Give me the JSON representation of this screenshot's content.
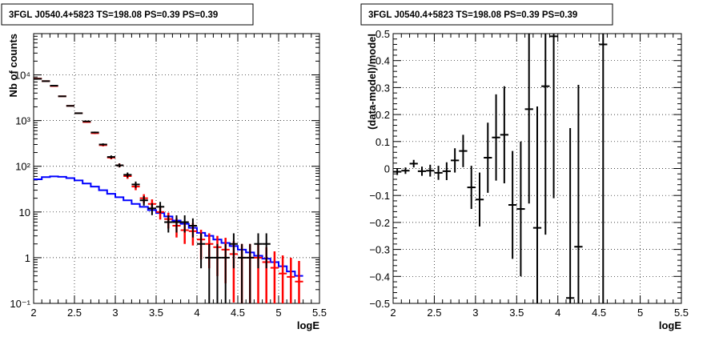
{
  "chart_data": [
    {
      "type": "scatter",
      "title": "3FGL J0540.4+5823 TS=198.08 PS=0.39 PS=0.39",
      "xlabel": "logE",
      "ylabel": "Nb of counts",
      "xlim": [
        2,
        5.5
      ],
      "ylim": [
        0.1,
        80000
      ],
      "yscale": "log",
      "grid": true,
      "xticks": [
        2,
        2.5,
        3,
        3.5,
        4,
        4.5,
        5,
        5.5
      ],
      "xtick_labels": [
        "2",
        "2.5",
        "3",
        "3.5",
        "4",
        "4.5",
        "5",
        "5.5"
      ],
      "yticks": [
        0.1,
        1,
        10,
        100,
        1000,
        10000
      ],
      "ytick_labels": [
        "10⁻¹",
        "1",
        "10",
        "10²",
        "10³",
        "10⁴"
      ],
      "x": [
        2.05,
        2.15,
        2.25,
        2.35,
        2.45,
        2.55,
        2.65,
        2.75,
        2.85,
        2.95,
        3.05,
        3.15,
        3.25,
        3.35,
        3.45,
        3.55,
        3.65,
        3.75,
        3.85,
        3.95,
        4.05,
        4.15,
        4.25,
        4.35,
        4.45,
        4.55,
        4.65,
        4.75,
        4.85,
        4.95,
        5.05,
        5.15,
        5.25
      ],
      "x_halfwidth": 0.05,
      "series": [
        {
          "color": "#000000",
          "values": [
            8200,
            7300,
            5800,
            3400,
            2100,
            1450,
            960,
            550,
            300,
            160,
            105,
            65,
            40,
            18,
            12,
            13,
            6,
            6,
            6,
            5,
            2,
            1,
            1,
            1,
            2,
            1,
            1,
            2,
            2,
            null,
            null,
            null,
            null
          ]
        },
        {
          "color": "#ff0000",
          "values": [
            8300,
            7300,
            5700,
            3400,
            2100,
            1450,
            930,
            530,
            290,
            155,
            105,
            61,
            36,
            20,
            15,
            10,
            7,
            5,
            4,
            3.8,
            2.5,
            2,
            1.7,
            1.5,
            1.2,
            1,
            1,
            1,
            0.8,
            0.6,
            0.45,
            0.38,
            0.3
          ]
        },
        {
          "color": "#0000ff",
          "values": [
            52,
            58,
            60,
            59,
            55,
            49,
            42,
            36,
            30,
            25,
            21,
            18,
            15,
            13,
            11,
            9.5,
            8,
            6.5,
            5.5,
            4.5,
            3.5,
            3,
            2.5,
            2.1,
            1.8,
            1.5,
            1.3,
            1.1,
            0.95,
            0.8,
            0.65,
            0.5,
            0.4
          ]
        }
      ]
    },
    {
      "type": "scatter",
      "title": "3FGL J0540.4+5823 TS=198.08 PS=0.39 PS=0.39",
      "xlabel": "logE",
      "ylabel": "(data-model)/model",
      "xlim": [
        2,
        5.5
      ],
      "ylim": [
        -0.5,
        0.5
      ],
      "grid": true,
      "xticks": [
        2,
        2.5,
        3,
        3.5,
        4,
        4.5,
        5,
        5.5
      ],
      "xtick_labels": [
        "2",
        "2.5",
        "3",
        "3.5",
        "4",
        "4.5",
        "5",
        "5.5"
      ],
      "yticks": [
        -0.5,
        -0.4,
        -0.3,
        -0.2,
        -0.1,
        0,
        0.1,
        0.2,
        0.3,
        0.4,
        0.5
      ],
      "ytick_labels": [
        "−0.5",
        "−0.4",
        "−0.3",
        "−0.2",
        "−0.1",
        "0",
        "0.1",
        "0.2",
        "0.3",
        "0.4",
        "0.5"
      ],
      "x_halfwidth": 0.05,
      "points": [
        {
          "x": 2.05,
          "y": -0.012,
          "err": 0.012
        },
        {
          "x": 2.15,
          "y": -0.008,
          "err": 0.012
        },
        {
          "x": 2.25,
          "y": 0.018,
          "err": 0.014
        },
        {
          "x": 2.35,
          "y": -0.01,
          "err": 0.017
        },
        {
          "x": 2.45,
          "y": -0.008,
          "err": 0.022
        },
        {
          "x": 2.55,
          "y": -0.016,
          "err": 0.026
        },
        {
          "x": 2.65,
          "y": -0.01,
          "err": 0.033
        },
        {
          "x": 2.75,
          "y": 0.03,
          "err": 0.045
        },
        {
          "x": 2.85,
          "y": 0.065,
          "err": 0.06
        },
        {
          "x": 2.95,
          "y": -0.07,
          "err": 0.08
        },
        {
          "x": 3.05,
          "y": -0.115,
          "err": 0.1
        },
        {
          "x": 3.15,
          "y": 0.04,
          "err": 0.13
        },
        {
          "x": 3.25,
          "y": 0.115,
          "err": 0.16
        },
        {
          "x": 3.35,
          "y": 0.125,
          "err": 0.18
        },
        {
          "x": 3.45,
          "y": -0.135,
          "err": 0.2
        },
        {
          "x": 3.55,
          "y": -0.15,
          "err": 0.25
        },
        {
          "x": 3.65,
          "y": 0.22,
          "err": 0.35
        },
        {
          "x": 3.75,
          "y": -0.22,
          "err": 0.45
        },
        {
          "x": 3.85,
          "y": 0.305,
          "err": 0.55
        },
        {
          "x": 3.95,
          "y": 0.49,
          "err": 0.6
        },
        {
          "x": 4.15,
          "y": -0.48,
          "err": 0.63
        },
        {
          "x": 4.25,
          "y": -0.29,
          "err": 0.6
        },
        {
          "x": 4.55,
          "y": 0.46,
          "err": 1.0
        }
      ]
    }
  ]
}
